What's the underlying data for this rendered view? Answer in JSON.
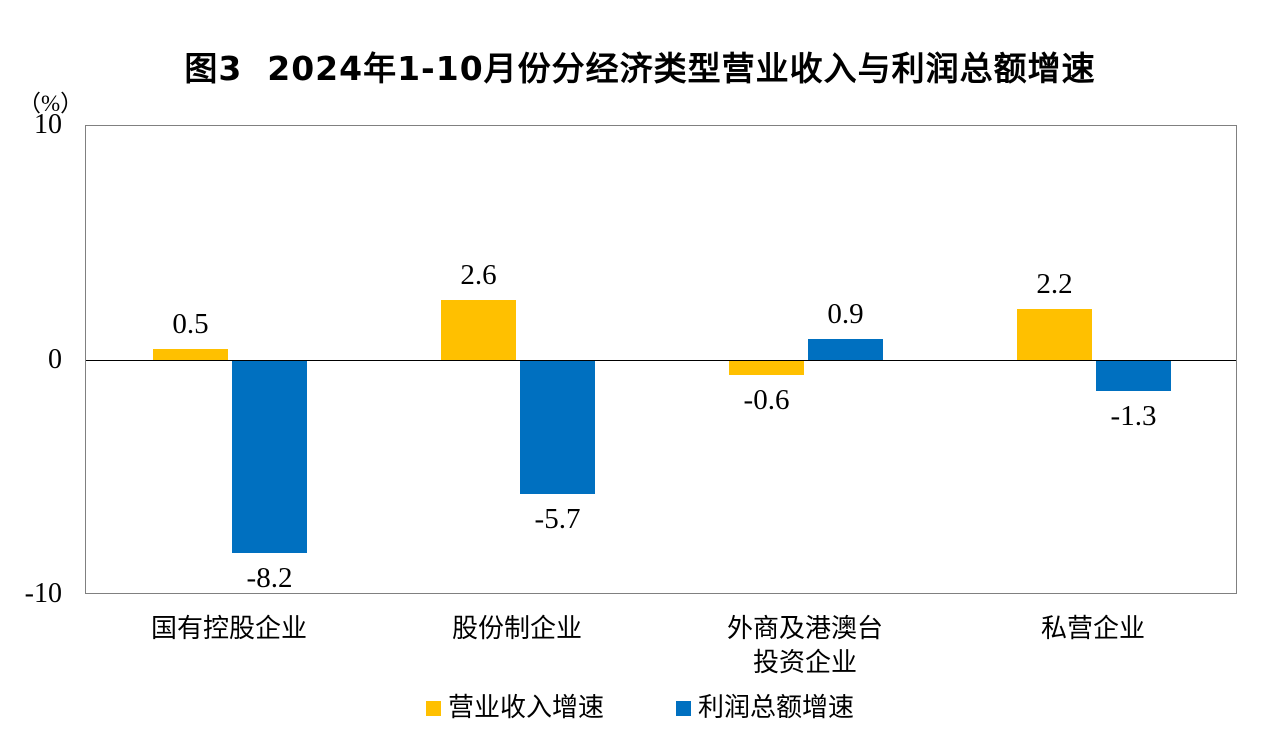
{
  "title": "图3  2024年1-10月份分经济类型营业收入与利润总额增速",
  "y_axis_unit": "（%）",
  "chart_data": {
    "type": "bar",
    "title": "图3  2024年1-10月份分经济类型营业收入与利润总额增速",
    "categories": [
      "国有控股企业",
      "股份制企业",
      "外商及港澳台\n投资企业",
      "私营企业"
    ],
    "series": [
      {
        "name": "营业收入增速",
        "color": "#FFC000",
        "values": [
          0.5,
          2.6,
          -0.6,
          2.2
        ]
      },
      {
        "name": "利润总额增速",
        "color": "#0070C0",
        "values": [
          -8.2,
          -5.7,
          0.9,
          -1.3
        ]
      }
    ],
    "xlabel": "",
    "ylabel": "（%）",
    "ylim": [
      -10,
      10
    ],
    "y_ticks": [
      {
        "value": 10,
        "label": "10"
      },
      {
        "value": 0,
        "label": "0"
      },
      {
        "value": -10,
        "label": "-10"
      }
    ],
    "grid": false,
    "legend_position": "bottom",
    "zero_line_color": "#000000",
    "plot_border_color": "#808080"
  }
}
